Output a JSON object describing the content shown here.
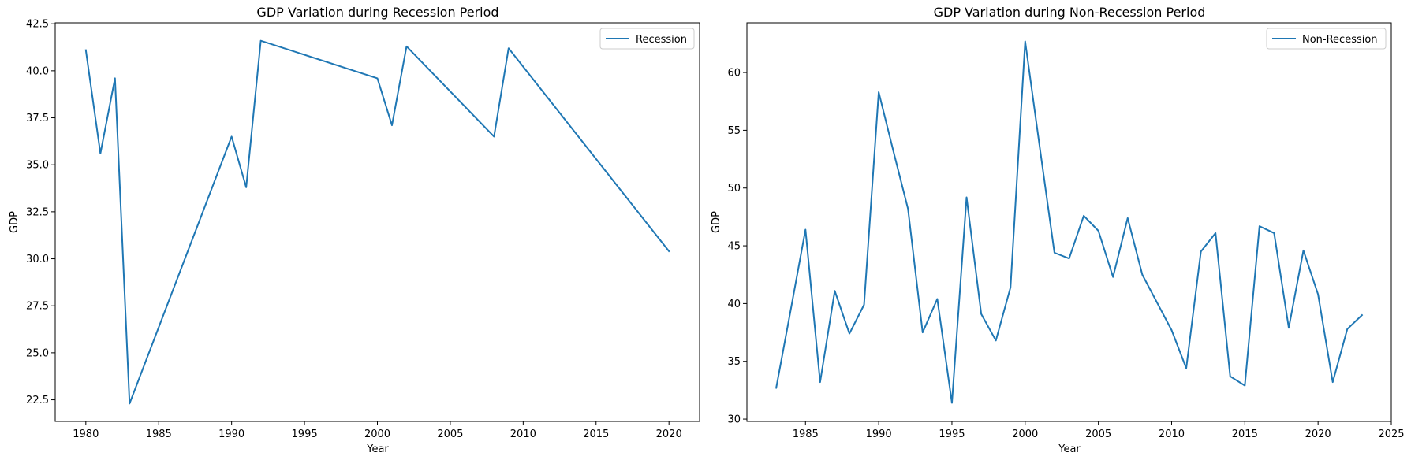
{
  "figure": {
    "background": "#ffffff"
  },
  "chart_data": [
    {
      "type": "line",
      "title": "GDP Variation during Recession Period",
      "xlabel": "Year",
      "ylabel": "GDP",
      "xlim": [
        1977.9,
        2022.1
      ],
      "ylim": [
        21.35,
        42.55
      ],
      "xticks": [
        1980,
        1985,
        1990,
        1995,
        2000,
        2005,
        2010,
        2015,
        2020
      ],
      "yticks": [
        22.5,
        25.0,
        27.5,
        30.0,
        32.5,
        35.0,
        37.5,
        40.0,
        42.5
      ],
      "ytick_labels": [
        "22.5",
        "25.0",
        "27.5",
        "30.0",
        "32.5",
        "35.0",
        "37.5",
        "40.0",
        "42.5"
      ],
      "grid": false,
      "legend_position": "upper right",
      "series": [
        {
          "name": "Recession",
          "color": "#1f77b4",
          "x": [
            1980,
            1981,
            1982,
            1983,
            1990,
            1991,
            1992,
            2000,
            2001,
            2002,
            2008,
            2009,
            2020
          ],
          "y": [
            41.1,
            35.6,
            39.6,
            22.3,
            36.5,
            33.8,
            41.6,
            39.6,
            37.1,
            41.3,
            36.5,
            41.2,
            30.4
          ]
        }
      ]
    },
    {
      "type": "line",
      "title": "GDP Variation during Non-Recession Period",
      "xlabel": "Year",
      "ylabel": "GDP",
      "xlim": [
        1981.0,
        2025.0
      ],
      "ylim": [
        29.8,
        64.3
      ],
      "xticks": [
        1985,
        1990,
        1995,
        2000,
        2005,
        2010,
        2015,
        2020,
        2025
      ],
      "yticks": [
        30,
        35,
        40,
        45,
        50,
        55,
        60
      ],
      "ytick_labels": [
        "30",
        "35",
        "40",
        "45",
        "50",
        "55",
        "60"
      ],
      "grid": false,
      "legend_position": "upper right",
      "series": [
        {
          "name": "Non-Recession",
          "color": "#1f77b4",
          "x": [
            1983,
            1984,
            1985,
            1986,
            1987,
            1988,
            1989,
            1990,
            1991,
            1992,
            1993,
            1994,
            1995,
            1996,
            1997,
            1998,
            1999,
            2000,
            2001,
            2002,
            2003,
            2004,
            2005,
            2006,
            2007,
            2008,
            2009,
            2010,
            2011,
            2012,
            2013,
            2014,
            2015,
            2016,
            2017,
            2018,
            2019,
            2020,
            2021,
            2022,
            2023
          ],
          "y": [
            32.7,
            39.5,
            46.4,
            33.2,
            41.1,
            37.4,
            39.9,
            58.3,
            53.2,
            48.2,
            37.5,
            40.4,
            31.4,
            49.2,
            39.1,
            36.8,
            41.4,
            62.7,
            53.5,
            44.4,
            43.9,
            47.6,
            46.3,
            42.3,
            47.4,
            42.5,
            40.1,
            37.7,
            34.4,
            44.5,
            46.1,
            33.7,
            32.9,
            46.7,
            46.1,
            37.9,
            44.6,
            40.8,
            33.2,
            37.8,
            39.0
          ]
        }
      ]
    }
  ]
}
